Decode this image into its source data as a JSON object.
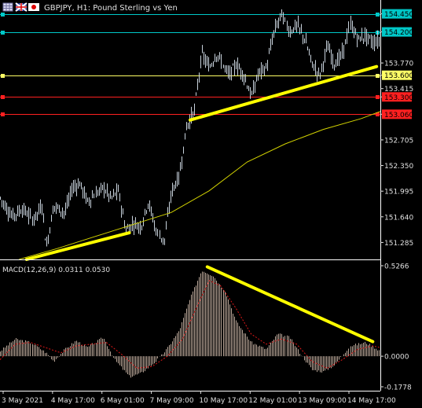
{
  "header": {
    "symbol_title": "GBPJPY, H1:  Pound Sterling vs Yen",
    "icon_names": [
      "chart-grid-icon",
      "flag-uk-icon",
      "flag-japan-icon"
    ]
  },
  "chart_data": [
    {
      "type": "candlestick",
      "title": "GBPJPY, H1:  Pound Sterling vs Yen",
      "ylim": [
        151.05,
        154.62
      ],
      "y_ticks": [
        "154.450",
        "154.200",
        "153.770",
        "153.600",
        "153.415",
        "153.300",
        "153.060",
        "152.705",
        "152.350",
        "151.995",
        "151.640",
        "151.285"
      ],
      "horizontal_levels": [
        {
          "value": 154.45,
          "label": "154.450",
          "color": "#00c8c8"
        },
        {
          "value": 154.2,
          "label": "154.200",
          "color": "#00c8c8"
        },
        {
          "value": 153.6,
          "label": "153.600",
          "color": "#ffff66"
        },
        {
          "value": 153.3,
          "label": "153.300",
          "color": "#ff2020"
        },
        {
          "value": 153.06,
          "label": "153.060",
          "color": "#ff2020"
        }
      ],
      "price_path": [
        [
          0,
          151.9
        ],
        [
          0.03,
          151.65
        ],
        [
          0.06,
          151.75
        ],
        [
          0.085,
          151.6
        ],
        [
          0.11,
          151.8
        ],
        [
          0.12,
          151.2
        ],
        [
          0.14,
          151.8
        ],
        [
          0.17,
          151.7
        ],
        [
          0.19,
          152.05
        ],
        [
          0.21,
          152.1
        ],
        [
          0.23,
          151.85
        ],
        [
          0.25,
          151.95
        ],
        [
          0.27,
          152.05
        ],
        [
          0.29,
          151.9
        ],
        [
          0.31,
          152.0
        ],
        [
          0.33,
          151.45
        ],
        [
          0.35,
          151.55
        ],
        [
          0.37,
          151.5
        ],
        [
          0.39,
          151.85
        ],
        [
          0.41,
          151.45
        ],
        [
          0.43,
          151.3
        ],
        [
          0.45,
          152.0
        ],
        [
          0.47,
          152.2
        ],
        [
          0.49,
          152.9
        ],
        [
          0.51,
          153.1
        ],
        [
          0.53,
          153.9
        ],
        [
          0.55,
          153.7
        ],
        [
          0.57,
          153.9
        ],
        [
          0.6,
          153.6
        ],
        [
          0.62,
          153.75
        ],
        [
          0.64,
          153.6
        ],
        [
          0.66,
          153.3
        ],
        [
          0.68,
          153.65
        ],
        [
          0.7,
          153.7
        ],
        [
          0.72,
          154.2
        ],
        [
          0.74,
          154.45
        ],
        [
          0.76,
          154.2
        ],
        [
          0.78,
          154.3
        ],
        [
          0.8,
          154.1
        ],
        [
          0.82,
          153.75
        ],
        [
          0.84,
          153.6
        ],
        [
          0.86,
          154.0
        ],
        [
          0.88,
          153.75
        ],
        [
          0.9,
          153.9
        ],
        [
          0.92,
          154.3
        ],
        [
          0.94,
          154.1
        ],
        [
          0.96,
          154.15
        ],
        [
          0.98,
          154.05
        ],
        [
          1.0,
          154.1
        ]
      ],
      "moving_average_path": [
        [
          0.05,
          151.05
        ],
        [
          0.15,
          151.2
        ],
        [
          0.3,
          151.45
        ],
        [
          0.45,
          151.7
        ],
        [
          0.55,
          152.0
        ],
        [
          0.65,
          152.4
        ],
        [
          0.75,
          152.65
        ],
        [
          0.85,
          152.85
        ],
        [
          0.95,
          153.0
        ],
        [
          1.0,
          153.1
        ]
      ],
      "trendlines": [
        {
          "from": [
            0.07,
            151.05
          ],
          "to": [
            0.34,
            151.42
          ],
          "color": "#ffff00"
        },
        {
          "from": [
            0.5,
            152.98
          ],
          "to": [
            0.99,
            153.72
          ],
          "color": "#ffff00"
        }
      ]
    },
    {
      "type": "bar",
      "title": "MACD(12,26,9) 0.0311 0.0530",
      "indicator": "MACD",
      "params": [
        12,
        26,
        9
      ],
      "current_main": 0.0311,
      "current_signal": 0.053,
      "ylim": [
        -0.1778,
        0.5266
      ],
      "y_ticks": [
        "0.5266",
        "0.0000",
        "-0.1778"
      ],
      "histogram_path": [
        [
          0,
          0.03
        ],
        [
          0.04,
          0.1
        ],
        [
          0.08,
          0.08
        ],
        [
          0.12,
          0.02
        ],
        [
          0.14,
          -0.03
        ],
        [
          0.17,
          0.04
        ],
        [
          0.2,
          0.09
        ],
        [
          0.23,
          0.05
        ],
        [
          0.27,
          0.11
        ],
        [
          0.3,
          -0.02
        ],
        [
          0.34,
          -0.12
        ],
        [
          0.37,
          -0.1
        ],
        [
          0.41,
          -0.03
        ],
        [
          0.44,
          0.05
        ],
        [
          0.47,
          0.15
        ],
        [
          0.5,
          0.34
        ],
        [
          0.53,
          0.5
        ],
        [
          0.56,
          0.47
        ],
        [
          0.59,
          0.38
        ],
        [
          0.62,
          0.2
        ],
        [
          0.66,
          0.08
        ],
        [
          0.7,
          0.04
        ],
        [
          0.73,
          0.13
        ],
        [
          0.76,
          0.11
        ],
        [
          0.79,
          0.01
        ],
        [
          0.82,
          -0.08
        ],
        [
          0.85,
          -0.09
        ],
        [
          0.88,
          -0.05
        ],
        [
          0.92,
          0.06
        ],
        [
          0.96,
          0.08
        ],
        [
          1.0,
          0.03
        ]
      ],
      "signal_path": [
        [
          0,
          -0.02
        ],
        [
          0.04,
          0.07
        ],
        [
          0.08,
          0.08
        ],
        [
          0.12,
          0.05
        ],
        [
          0.16,
          0.02
        ],
        [
          0.2,
          0.06
        ],
        [
          0.24,
          0.07
        ],
        [
          0.28,
          0.08
        ],
        [
          0.32,
          0.01
        ],
        [
          0.36,
          -0.07
        ],
        [
          0.4,
          -0.06
        ],
        [
          0.44,
          0.0
        ],
        [
          0.48,
          0.1
        ],
        [
          0.52,
          0.3
        ],
        [
          0.55,
          0.44
        ],
        [
          0.58,
          0.41
        ],
        [
          0.62,
          0.28
        ],
        [
          0.66,
          0.13
        ],
        [
          0.7,
          0.07
        ],
        [
          0.74,
          0.1
        ],
        [
          0.78,
          0.07
        ],
        [
          0.82,
          -0.03
        ],
        [
          0.86,
          -0.07
        ],
        [
          0.9,
          -0.02
        ],
        [
          0.94,
          0.04
        ],
        [
          0.98,
          0.06
        ],
        [
          1.0,
          0.05
        ]
      ],
      "trendlines": [
        {
          "from": [
            0.545,
            0.52
          ],
          "to": [
            0.98,
            0.085
          ],
          "color": "#ffff00"
        }
      ]
    }
  ],
  "time_axis_labels": [
    "3 May 2021",
    "4 May 17:00",
    "6 May 01:00",
    "7 May 09:00",
    "10 May 17:00",
    "12 May 01:00",
    "13 May 09:00",
    "14 May 17:00"
  ],
  "colors": {
    "background": "#000000",
    "candle": "#c8d2dc",
    "axis_text": "#e0e0e0",
    "moving_average": "#d2d200",
    "macd_histogram": "#b9a698",
    "macd_signal": "#e01818",
    "trendline": "#ffff00"
  }
}
